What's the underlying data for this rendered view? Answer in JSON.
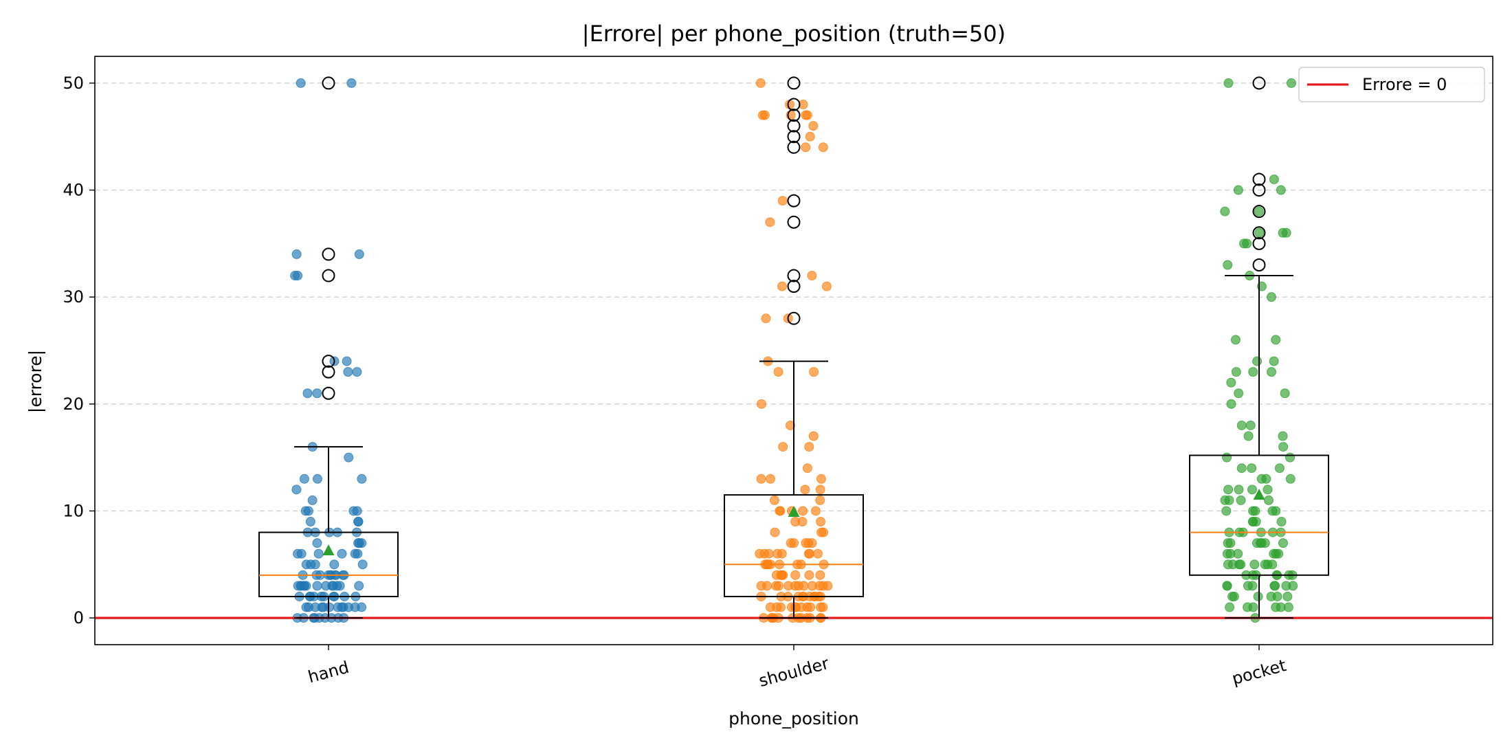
{
  "chart_data": {
    "type": "box",
    "title": "|Errore| per phone_position (truth=50)",
    "xlabel": "phone_position",
    "ylabel": "|errore|",
    "categories": [
      "hand",
      "shoulder",
      "pocket"
    ],
    "ylim": [
      -2.5,
      52.5
    ],
    "yticks": [
      0,
      10,
      20,
      30,
      40,
      50
    ],
    "grid": "horizontal dashed",
    "legend": {
      "position": "top-right",
      "entries": [
        "Errore = 0"
      ]
    },
    "reference_line": {
      "y": 0,
      "label": "Errore = 0",
      "color": "#e41a1c"
    },
    "colors": {
      "hand": "#1f77b4",
      "shoulder": "#ff7f0e",
      "pocket": "#2ca02c",
      "median": "#ff7f0e",
      "mean_marker": "#2ca02c"
    },
    "boxes": [
      {
        "category": "hand",
        "q1": 2,
        "median": 4,
        "q3": 8,
        "whisker_low": 0,
        "whisker_high": 16,
        "mean": 6.3,
        "outliers": [
          50,
          34,
          32,
          24,
          23,
          21
        ]
      },
      {
        "category": "shoulder",
        "q1": 2,
        "median": 5,
        "q3": 11.5,
        "whisker_low": 0,
        "whisker_high": 24,
        "mean": 9.9,
        "outliers": [
          50,
          48,
          47,
          46,
          45,
          44,
          39,
          37,
          32,
          31,
          28
        ]
      },
      {
        "category": "pocket",
        "q1": 4,
        "median": 8,
        "q3": 15.2,
        "whisker_low": 0,
        "whisker_high": 32,
        "mean": 11.5,
        "outliers": [
          50,
          41,
          40,
          38,
          36,
          35,
          33
        ]
      }
    ],
    "points": [
      {
        "category": "hand",
        "values": [
          50,
          50,
          34,
          34,
          32,
          32,
          24,
          24,
          23,
          23,
          21,
          21,
          16,
          15,
          13,
          13,
          13,
          12,
          11,
          10,
          10,
          10,
          10,
          9,
          9,
          9,
          8,
          8,
          8,
          8,
          8,
          7,
          7,
          7,
          7,
          6,
          6,
          6,
          6,
          6,
          6,
          5,
          5,
          5,
          5,
          5,
          4,
          4,
          4,
          4,
          4,
          4,
          4,
          4,
          4,
          4,
          3,
          3,
          3,
          3,
          3,
          3,
          3,
          3,
          3,
          3,
          3,
          3,
          3,
          2,
          2,
          2,
          2,
          2,
          2,
          2,
          2,
          2,
          2,
          1,
          1,
          1,
          1,
          1,
          1,
          1,
          1,
          1,
          1,
          1,
          1,
          0,
          0,
          0,
          0,
          0,
          0,
          0,
          0,
          0
        ]
      },
      {
        "category": "shoulder",
        "values": [
          50,
          48,
          48,
          47,
          47,
          47,
          47,
          47,
          46,
          45,
          44,
          44,
          39,
          37,
          32,
          31,
          31,
          28,
          28,
          24,
          23,
          23,
          20,
          18,
          17,
          16,
          16,
          14,
          13,
          13,
          13,
          12,
          12,
          11,
          11,
          10,
          10,
          10,
          10,
          10,
          9,
          9,
          9,
          8,
          8,
          8,
          7,
          7,
          7,
          7,
          7,
          6,
          6,
          6,
          6,
          6,
          6,
          6,
          6,
          5,
          5,
          5,
          5,
          5,
          5,
          5,
          5,
          4,
          4,
          4,
          4,
          4,
          4,
          4,
          3,
          3,
          3,
          3,
          3,
          3,
          3,
          3,
          3,
          3,
          3,
          3,
          2,
          2,
          2,
          2,
          2,
          2,
          2,
          2,
          2,
          2,
          2,
          1,
          1,
          1,
          1,
          1,
          1,
          1,
          1,
          1,
          1,
          1,
          0,
          0,
          0,
          0,
          0,
          0,
          0,
          0,
          0,
          0,
          0,
          0
        ]
      },
      {
        "category": "pocket",
        "values": [
          50,
          50,
          41,
          40,
          40,
          38,
          38,
          36,
          36,
          36,
          35,
          35,
          33,
          32,
          31,
          30,
          26,
          26,
          24,
          24,
          23,
          23,
          23,
          22,
          21,
          21,
          20,
          18,
          18,
          17,
          17,
          16,
          15,
          15,
          14,
          14,
          14,
          13,
          13,
          13,
          12,
          12,
          12,
          12,
          11,
          11,
          11,
          11,
          10,
          10,
          10,
          10,
          10,
          9,
          9,
          9,
          9,
          8,
          8,
          8,
          8,
          8,
          8,
          7,
          7,
          7,
          7,
          7,
          7,
          7,
          6,
          6,
          6,
          6,
          6,
          6,
          5,
          5,
          5,
          5,
          5,
          5,
          5,
          5,
          4,
          4,
          4,
          4,
          4,
          4,
          4,
          3,
          3,
          3,
          3,
          3,
          3,
          3,
          3,
          2,
          2,
          2,
          2,
          2,
          2,
          1,
          1,
          1,
          1,
          1,
          1,
          0
        ]
      }
    ]
  }
}
